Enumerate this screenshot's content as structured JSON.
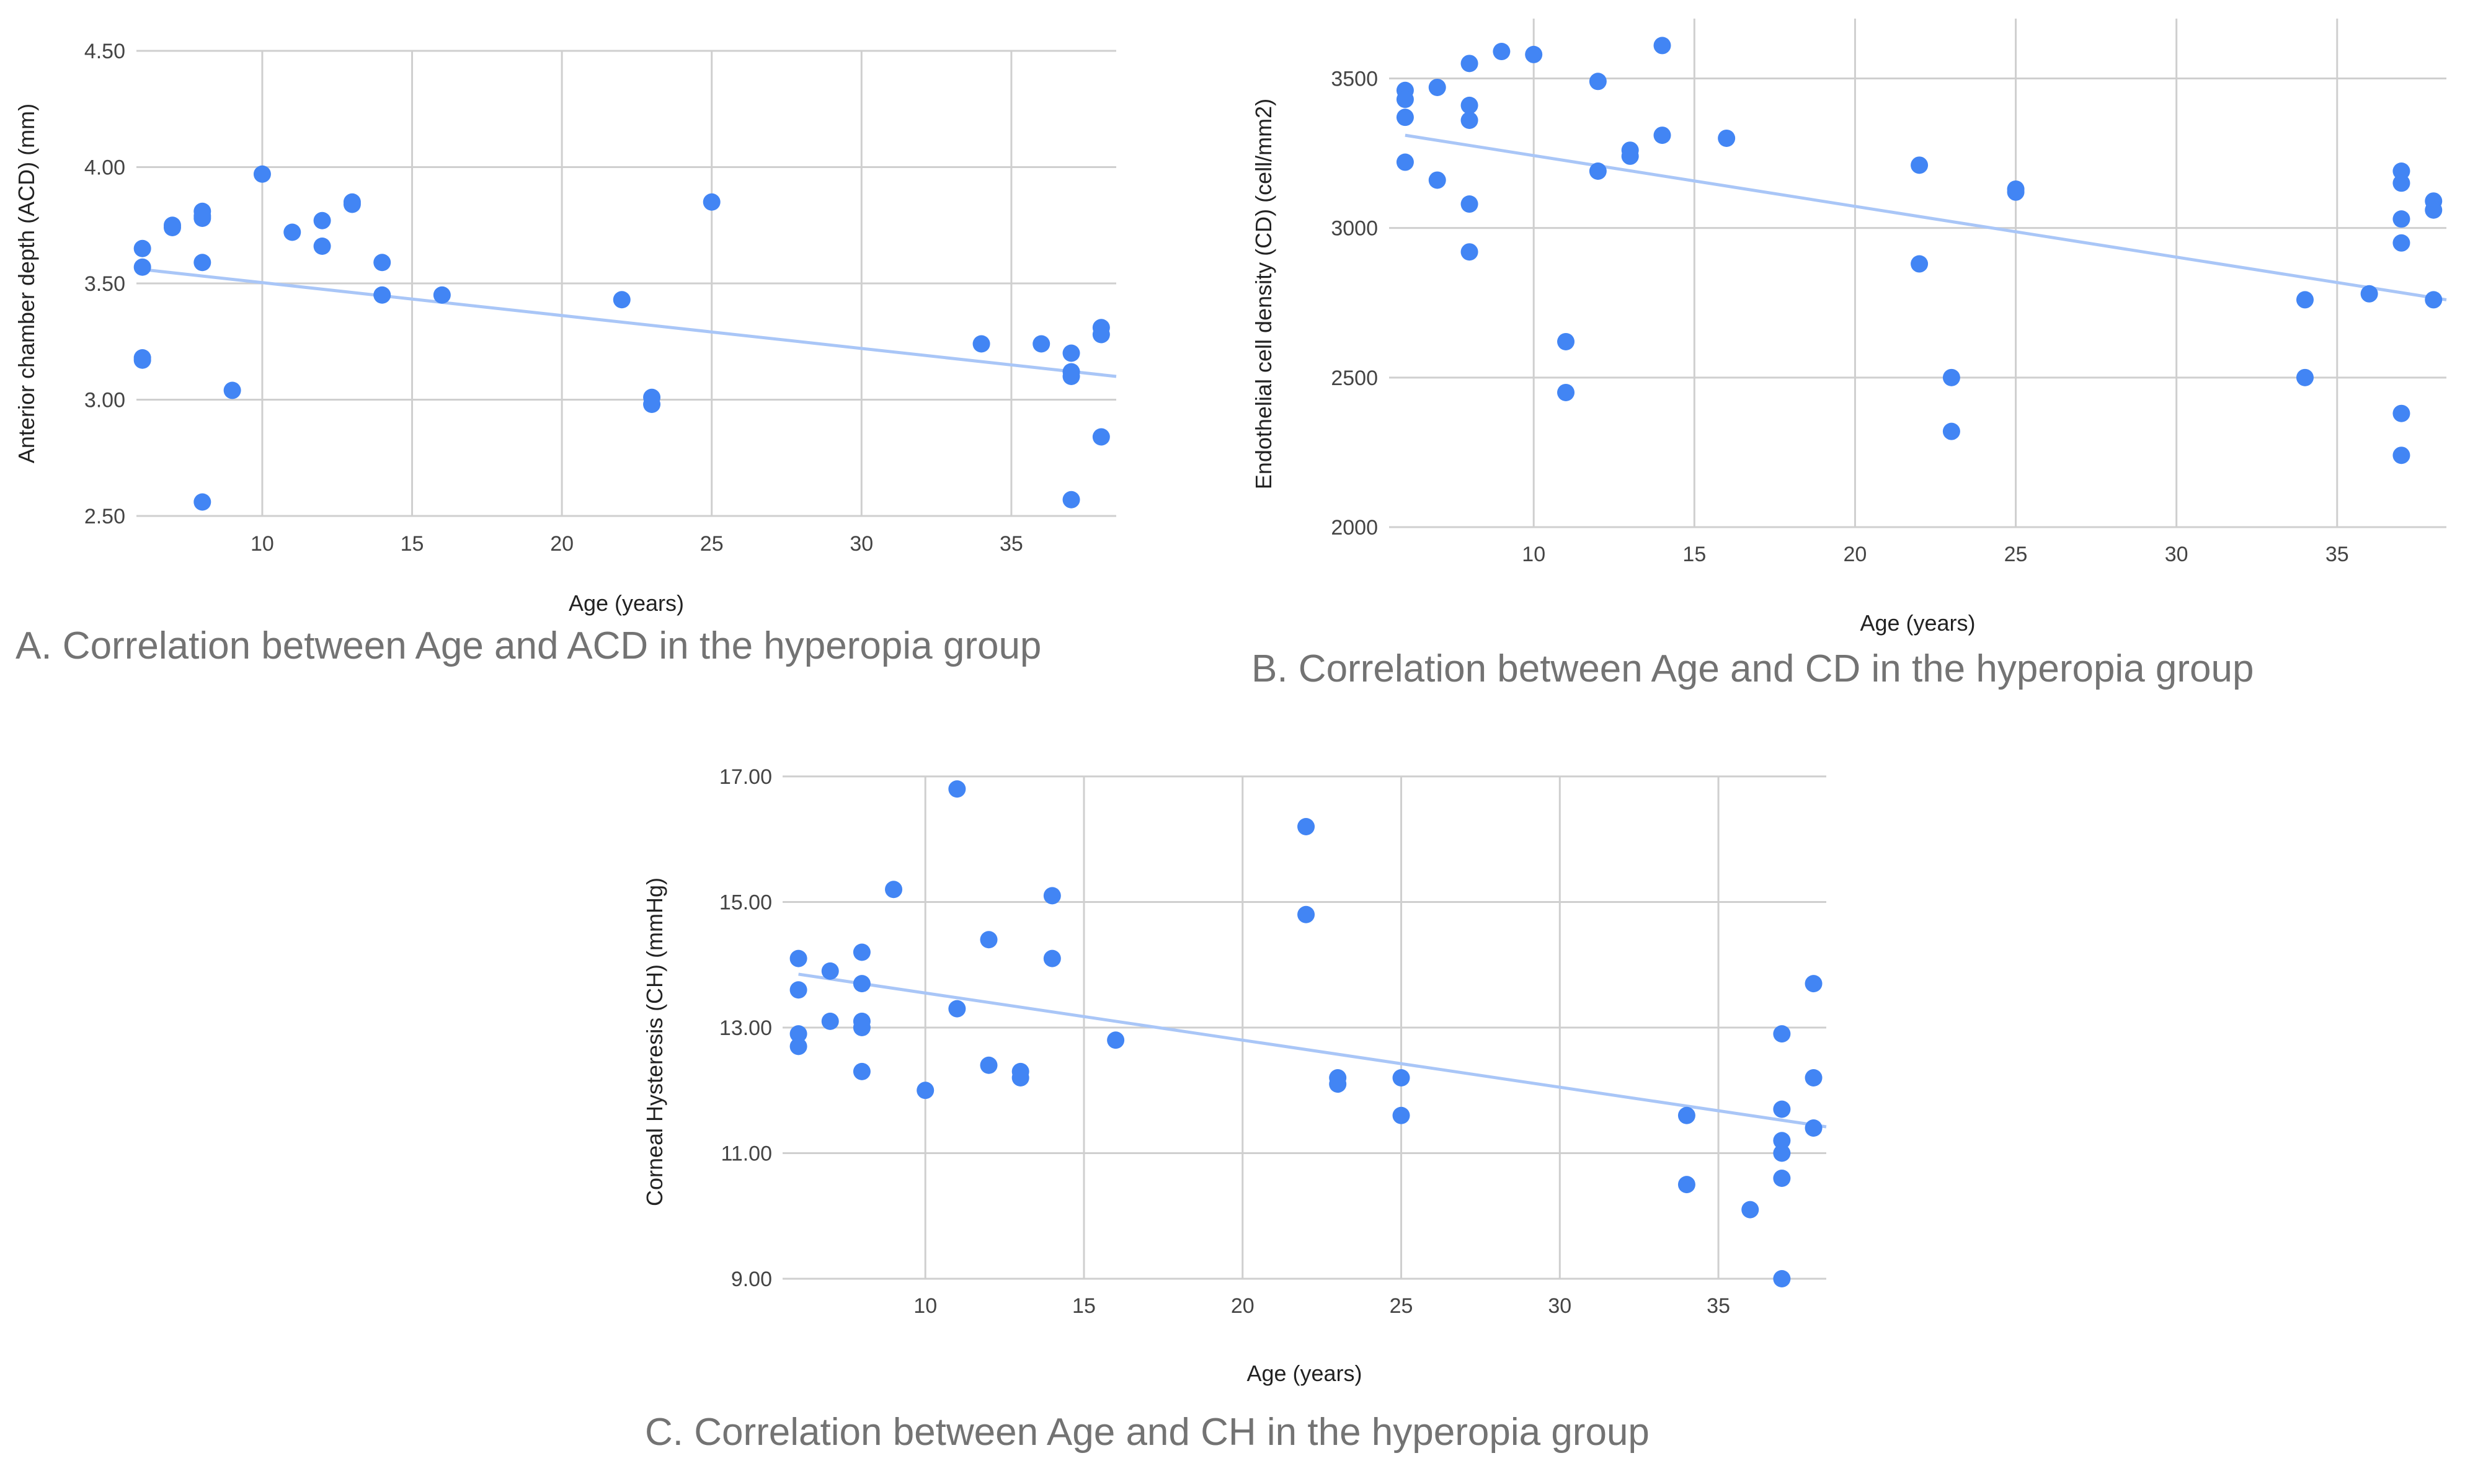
{
  "colors": {
    "point": "#4285f4",
    "trendline": "#a9c6f7",
    "grid": "#cfcfcf"
  },
  "chart_data": [
    {
      "id": "A",
      "type": "scatter",
      "caption": "A. Correlation between Age and ACD in the hyperopia group",
      "xlabel": "Age (years)",
      "ylabel": "Anterior chamber depth (ACD) (mm)",
      "xlim": [
        5.8,
        38.5
      ],
      "ylim": [
        2.5,
        4.5
      ],
      "xticks": [
        10,
        15,
        20,
        25,
        30,
        35
      ],
      "yticks": [
        2.5,
        3.0,
        3.5,
        4.0,
        4.5
      ],
      "ytick_labels": [
        "2.50",
        "3.00",
        "3.50",
        "4.00",
        "4.50"
      ],
      "trendline": {
        "x": [
          6,
          38.5
        ],
        "y": [
          3.56,
          3.1
        ]
      },
      "x": [
        6,
        6,
        6,
        6,
        7,
        7,
        8,
        8,
        8,
        8,
        8,
        9,
        10,
        11,
        12,
        12,
        13,
        13,
        14,
        14,
        16,
        22,
        23,
        23,
        25,
        34,
        36,
        37,
        37,
        37,
        37,
        38,
        38,
        38
      ],
      "y": [
        3.65,
        3.57,
        3.18,
        3.17,
        3.74,
        3.75,
        3.81,
        3.78,
        3.79,
        3.59,
        2.56,
        3.04,
        3.97,
        3.72,
        3.77,
        3.66,
        3.85,
        3.84,
        3.59,
        3.45,
        3.45,
        3.43,
        3.01,
        2.98,
        3.85,
        3.24,
        3.24,
        3.2,
        3.12,
        3.1,
        2.57,
        3.31,
        3.28,
        2.84
      ]
    },
    {
      "id": "B",
      "type": "scatter",
      "caption": "B. Correlation between Age and CD in the hyperopia group",
      "xlabel": "Age (years)",
      "ylabel": "Endothelial cell density (CD) (cell/mm2)",
      "xlim": [
        5.5,
        38.4
      ],
      "ylim": [
        2000,
        3700
      ],
      "xticks": [
        10,
        15,
        20,
        25,
        30,
        35
      ],
      "yticks": [
        2000,
        2500,
        3000,
        3500
      ],
      "ytick_labels": [
        "2000",
        "2500",
        "3000",
        "3500"
      ],
      "trendline": {
        "x": [
          6,
          38.4
        ],
        "y": [
          3310,
          2760
        ]
      },
      "x": [
        6,
        6,
        6,
        6,
        7,
        7,
        8,
        8,
        8,
        8,
        8,
        9,
        10,
        11,
        11,
        12,
        12,
        13,
        13,
        14,
        14,
        16,
        22,
        22,
        23,
        23,
        25,
        25,
        34,
        34,
        36,
        37,
        37,
        37,
        37,
        37,
        37,
        38,
        38,
        38
      ],
      "y": [
        3460,
        3430,
        3370,
        3220,
        3470,
        3160,
        3550,
        3410,
        3360,
        3080,
        2920,
        3590,
        3580,
        2620,
        2450,
        3490,
        3190,
        3260,
        3240,
        3610,
        3310,
        3300,
        3210,
        2880,
        2500,
        2320,
        3130,
        3120,
        2760,
        2500,
        2780,
        3190,
        3150,
        3030,
        2950,
        2380,
        2240,
        3090,
        3060,
        2760
      ]
    },
    {
      "id": "C",
      "type": "scatter",
      "caption": "C. Correlation between Age and CH in the hyperopia group",
      "xlabel": "Age (years)",
      "ylabel": "Corneal Hysteresis (CH) (mmHg)",
      "xlim": [
        5.5,
        38.4
      ],
      "ylim": [
        9.0,
        17.0
      ],
      "xticks": [
        10,
        15,
        20,
        25,
        30,
        35
      ],
      "yticks": [
        9,
        11,
        13,
        15,
        17
      ],
      "ytick_labels": [
        "9.00",
        "11.00",
        "13.00",
        "15.00",
        "17.00"
      ],
      "trendline": {
        "x": [
          6,
          38.4
        ],
        "y": [
          13.85,
          11.42
        ]
      },
      "x": [
        6,
        6,
        6,
        6,
        7,
        7,
        8,
        8,
        8,
        8,
        8,
        9,
        10,
        11,
        11,
        12,
        12,
        13,
        13,
        14,
        14,
        16,
        22,
        22,
        23,
        23,
        25,
        25,
        34,
        34,
        36,
        37,
        37,
        37,
        37,
        37,
        37,
        38,
        38,
        38
      ],
      "y": [
        14.1,
        13.6,
        12.9,
        12.7,
        13.9,
        13.1,
        14.2,
        13.7,
        13.1,
        13.0,
        12.3,
        15.2,
        12.0,
        16.8,
        13.3,
        14.4,
        12.4,
        12.3,
        12.2,
        15.1,
        14.1,
        12.8,
        16.2,
        14.8,
        12.2,
        12.1,
        12.2,
        11.6,
        11.6,
        10.5,
        10.1,
        12.9,
        11.7,
        11.2,
        11.0,
        10.6,
        9.0,
        13.7,
        12.2,
        11.4
      ]
    }
  ]
}
